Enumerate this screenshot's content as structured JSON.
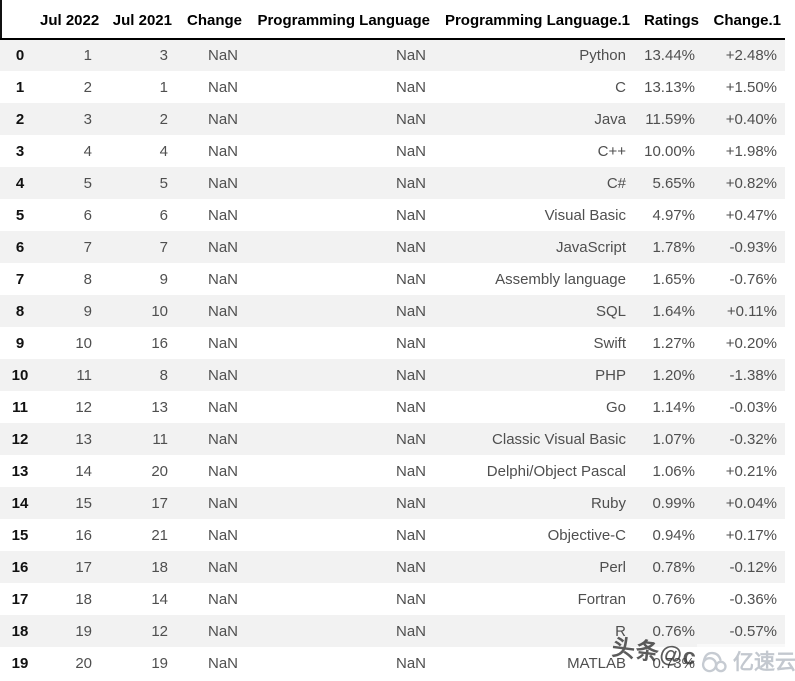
{
  "table": {
    "columns": [
      "",
      "Jul 2022",
      "Jul 2021",
      "Change",
      "Programming Language",
      "Programming Language.1",
      "Ratings",
      "Change.1"
    ],
    "rows": [
      {
        "index": "0",
        "cells": [
          "1",
          "3",
          "NaN",
          "NaN",
          "Python",
          "13.44%",
          "+2.48%"
        ]
      },
      {
        "index": "1",
        "cells": [
          "2",
          "1",
          "NaN",
          "NaN",
          "C",
          "13.13%",
          "+1.50%"
        ]
      },
      {
        "index": "2",
        "cells": [
          "3",
          "2",
          "NaN",
          "NaN",
          "Java",
          "11.59%",
          "+0.40%"
        ]
      },
      {
        "index": "3",
        "cells": [
          "4",
          "4",
          "NaN",
          "NaN",
          "C++",
          "10.00%",
          "+1.98%"
        ]
      },
      {
        "index": "4",
        "cells": [
          "5",
          "5",
          "NaN",
          "NaN",
          "C#",
          "5.65%",
          "+0.82%"
        ]
      },
      {
        "index": "5",
        "cells": [
          "6",
          "6",
          "NaN",
          "NaN",
          "Visual Basic",
          "4.97%",
          "+0.47%"
        ]
      },
      {
        "index": "6",
        "cells": [
          "7",
          "7",
          "NaN",
          "NaN",
          "JavaScript",
          "1.78%",
          "-0.93%"
        ]
      },
      {
        "index": "7",
        "cells": [
          "8",
          "9",
          "NaN",
          "NaN",
          "Assembly language",
          "1.65%",
          "-0.76%"
        ]
      },
      {
        "index": "8",
        "cells": [
          "9",
          "10",
          "NaN",
          "NaN",
          "SQL",
          "1.64%",
          "+0.11%"
        ]
      },
      {
        "index": "9",
        "cells": [
          "10",
          "16",
          "NaN",
          "NaN",
          "Swift",
          "1.27%",
          "+0.20%"
        ]
      },
      {
        "index": "10",
        "cells": [
          "11",
          "8",
          "NaN",
          "NaN",
          "PHP",
          "1.20%",
          "-1.38%"
        ]
      },
      {
        "index": "11",
        "cells": [
          "12",
          "13",
          "NaN",
          "NaN",
          "Go",
          "1.14%",
          "-0.03%"
        ]
      },
      {
        "index": "12",
        "cells": [
          "13",
          "11",
          "NaN",
          "NaN",
          "Classic Visual Basic",
          "1.07%",
          "-0.32%"
        ]
      },
      {
        "index": "13",
        "cells": [
          "14",
          "20",
          "NaN",
          "NaN",
          "Delphi/Object Pascal",
          "1.06%",
          "+0.21%"
        ]
      },
      {
        "index": "14",
        "cells": [
          "15",
          "17",
          "NaN",
          "NaN",
          "Ruby",
          "0.99%",
          "+0.04%"
        ]
      },
      {
        "index": "15",
        "cells": [
          "16",
          "21",
          "NaN",
          "NaN",
          "Objective-C",
          "0.94%",
          "+0.17%"
        ]
      },
      {
        "index": "16",
        "cells": [
          "17",
          "18",
          "NaN",
          "NaN",
          "Perl",
          "0.78%",
          "-0.12%"
        ]
      },
      {
        "index": "17",
        "cells": [
          "18",
          "14",
          "NaN",
          "NaN",
          "Fortran",
          "0.76%",
          "-0.36%"
        ]
      },
      {
        "index": "18",
        "cells": [
          "19",
          "12",
          "NaN",
          "NaN",
          "R",
          "0.76%",
          "-0.57%"
        ]
      },
      {
        "index": "19",
        "cells": [
          "20",
          "19",
          "NaN",
          "NaN",
          "MATLAB",
          "0.73%",
          ""
        ]
      }
    ]
  },
  "watermarks": {
    "toutiao": "头条@c",
    "yisucloud": "亿速云"
  },
  "colors": {
    "stripe": "#f2f2f2",
    "header_border": "#000000",
    "header_text": "#000000",
    "body_text": "#4f4f4f",
    "watermark_dark": "#373737",
    "watermark_light": "#c3c8cf"
  }
}
